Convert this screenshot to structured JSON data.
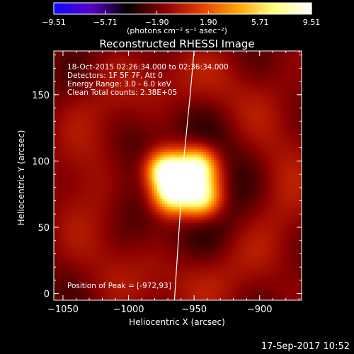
{
  "chart_data": {
    "type": "heatmap",
    "title": "Reconstructed RHESSI Image",
    "xlabel": "Heliocentric X (arcsec)",
    "ylabel": "Heliocentric Y (arcsec)",
    "xlim": [
      -1057,
      -868
    ],
    "ylim": [
      -5,
      183
    ],
    "xticks": [
      -1050,
      -1000,
      -950,
      -900
    ],
    "xtick_labels": [
      "−1050",
      "−1000",
      "−950",
      "−900"
    ],
    "yticks": [
      0,
      50,
      100,
      150
    ],
    "ytick_labels": [
      "0",
      "50",
      "100",
      "150"
    ],
    "colorbar": {
      "ticks": [
        -9.51,
        -5.71,
        -1.9,
        1.9,
        5.71,
        9.51
      ],
      "tick_labels": [
        "−9.51",
        "−5.71",
        "−1.90",
        "1.90",
        "5.71",
        "9.51"
      ],
      "label": "(photons cm⁻² s⁻¹ asec⁻²)",
      "range": [
        -9.51,
        9.51
      ],
      "colors": [
        "#0a0aff",
        "#5a00c8",
        "#000000",
        "#8a0000",
        "#e63c00",
        "#ffa500",
        "#ffff80",
        "#ffffff"
      ]
    },
    "annotations": [
      "18-Oct-2015 02:26:34.000 to 02:36:34.000",
      "Detectors: 1F 5F 7F, Att 0",
      "Energy Range: 3.0 - 6.0 keV",
      "Clean    Total counts: 2.38E+05",
      "Position of Peak = [-972,93]"
    ],
    "peak": {
      "x": -972,
      "y": 93
    },
    "sources": [
      {
        "x": -972,
        "y": 93,
        "amplitude": 9.5,
        "sigma": 10
      },
      {
        "x": -947,
        "y": 96,
        "amplitude": 7.5,
        "sigma": 10
      },
      {
        "x": -968,
        "y": 74,
        "amplitude": 7.0,
        "sigma": 10
      },
      {
        "x": -944,
        "y": 72,
        "amplitude": 7.0,
        "sigma": 10
      },
      {
        "x": -958,
        "y": 84,
        "amplitude": 4.0,
        "sigma": 14
      }
    ],
    "limb_curve": [
      {
        "x": -965,
        "y": -5
      },
      {
        "x": -962,
        "y": 40
      },
      {
        "x": -958,
        "y": 100
      },
      {
        "x": -953,
        "y": 150
      },
      {
        "x": -950,
        "y": 183
      }
    ]
  },
  "timestamp": "17-Sep-2017 10:52"
}
